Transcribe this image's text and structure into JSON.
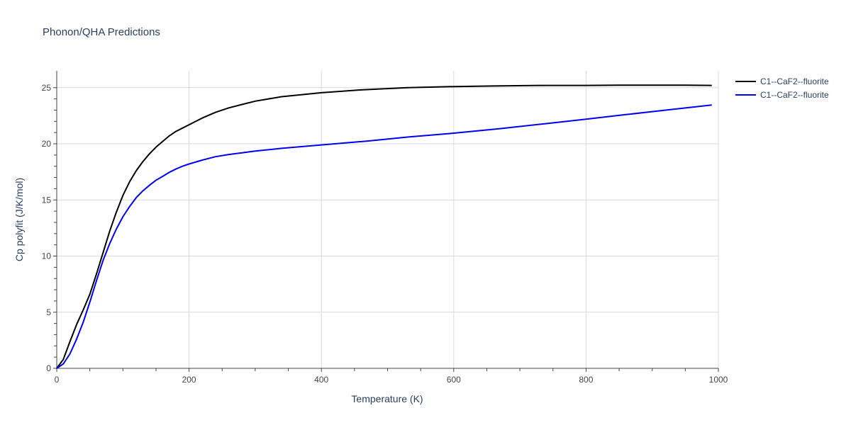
{
  "chart_data": {
    "type": "line",
    "title": "Phonon/QHA Predictions",
    "xlabel": "Temperature (K)",
    "ylabel": "Cp polyfit (J/K/mol)",
    "xlim": [
      0,
      1000
    ],
    "ylim": [
      0,
      26.5
    ],
    "xticks": [
      0,
      200,
      400,
      600,
      800,
      1000
    ],
    "yticks": [
      0,
      5,
      10,
      15,
      20,
      25
    ],
    "grid": true,
    "legend_position": "top-right",
    "series": [
      {
        "name": "C1--CaF2--fluorite",
        "color": "#000000",
        "x": [
          0,
          10,
          20,
          30,
          40,
          50,
          60,
          70,
          80,
          90,
          100,
          110,
          120,
          130,
          140,
          150,
          160,
          170,
          180,
          190,
          200,
          220,
          240,
          260,
          280,
          300,
          340,
          400,
          460,
          530,
          600,
          660,
          730,
          800,
          850,
          900,
          950,
          990
        ],
        "y": [
          0,
          0.8,
          2.4,
          3.9,
          5.2,
          6.6,
          8.4,
          10.3,
          12.2,
          13.9,
          15.4,
          16.6,
          17.6,
          18.4,
          19.1,
          19.7,
          20.2,
          20.7,
          21.1,
          21.4,
          21.7,
          22.3,
          22.8,
          23.2,
          23.5,
          23.8,
          24.2,
          24.55,
          24.8,
          25.0,
          25.1,
          25.15,
          25.2,
          25.2,
          25.22,
          25.22,
          25.22,
          25.2
        ]
      },
      {
        "name": "C1--CaF2--fluorite",
        "color": "#0000ee",
        "x": [
          0,
          10,
          20,
          30,
          40,
          50,
          60,
          70,
          80,
          90,
          100,
          110,
          120,
          130,
          140,
          150,
          160,
          170,
          180,
          190,
          200,
          220,
          240,
          260,
          280,
          300,
          340,
          400,
          470,
          530,
          600,
          670,
          740,
          800,
          860,
          920,
          990
        ],
        "y": [
          0,
          0.4,
          1.3,
          2.6,
          4.1,
          5.9,
          7.8,
          9.6,
          11.1,
          12.4,
          13.5,
          14.4,
          15.2,
          15.8,
          16.3,
          16.75,
          17.1,
          17.45,
          17.75,
          18.0,
          18.2,
          18.55,
          18.85,
          19.05,
          19.2,
          19.35,
          19.6,
          19.9,
          20.25,
          20.6,
          20.95,
          21.35,
          21.8,
          22.2,
          22.6,
          23.0,
          23.45
        ]
      }
    ]
  }
}
